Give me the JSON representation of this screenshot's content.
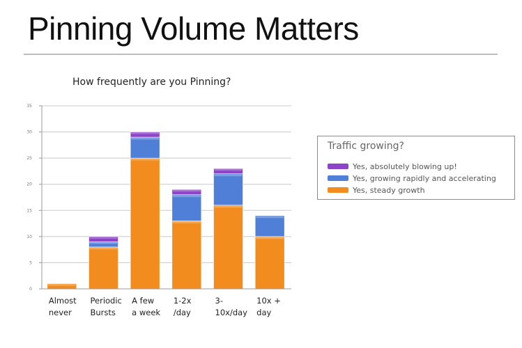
{
  "slide": {
    "title": "Pinning Volume Matters"
  },
  "chart_data": {
    "type": "bar",
    "stacked": true,
    "title": "How frequently are you Pinning?",
    "categories": [
      [
        "Almost",
        "never"
      ],
      [
        "Periodic",
        "Bursts"
      ],
      [
        "A few",
        "a week"
      ],
      [
        "1-2x",
        "/day"
      ],
      [
        "3-",
        "10x/day"
      ],
      [
        "10x +",
        "day"
      ]
    ],
    "series": [
      {
        "name": "Yes, steady growth",
        "color": "#f28c1e",
        "values": [
          1,
          8,
          25,
          13,
          16,
          10
        ]
      },
      {
        "name": "Yes, growing rapidly and accelerating",
        "color": "#4f7fd6",
        "values": [
          0,
          1,
          4,
          5,
          6,
          4
        ]
      },
      {
        "name": "Yes, absolutely blowing up!",
        "color": "#8e44c8",
        "values": [
          0,
          1,
          1,
          1,
          1,
          0
        ]
      }
    ],
    "ylim": [
      0,
      35
    ],
    "yticks": [
      0,
      5,
      10,
      15,
      20,
      25,
      30,
      35
    ],
    "grid": true,
    "legend": {
      "title": "Traffic growing?",
      "placement": "right",
      "order": [
        "Yes, absolutely blowing up!",
        "Yes, growing rapidly and accelerating",
        "Yes, steady growth"
      ]
    }
  }
}
